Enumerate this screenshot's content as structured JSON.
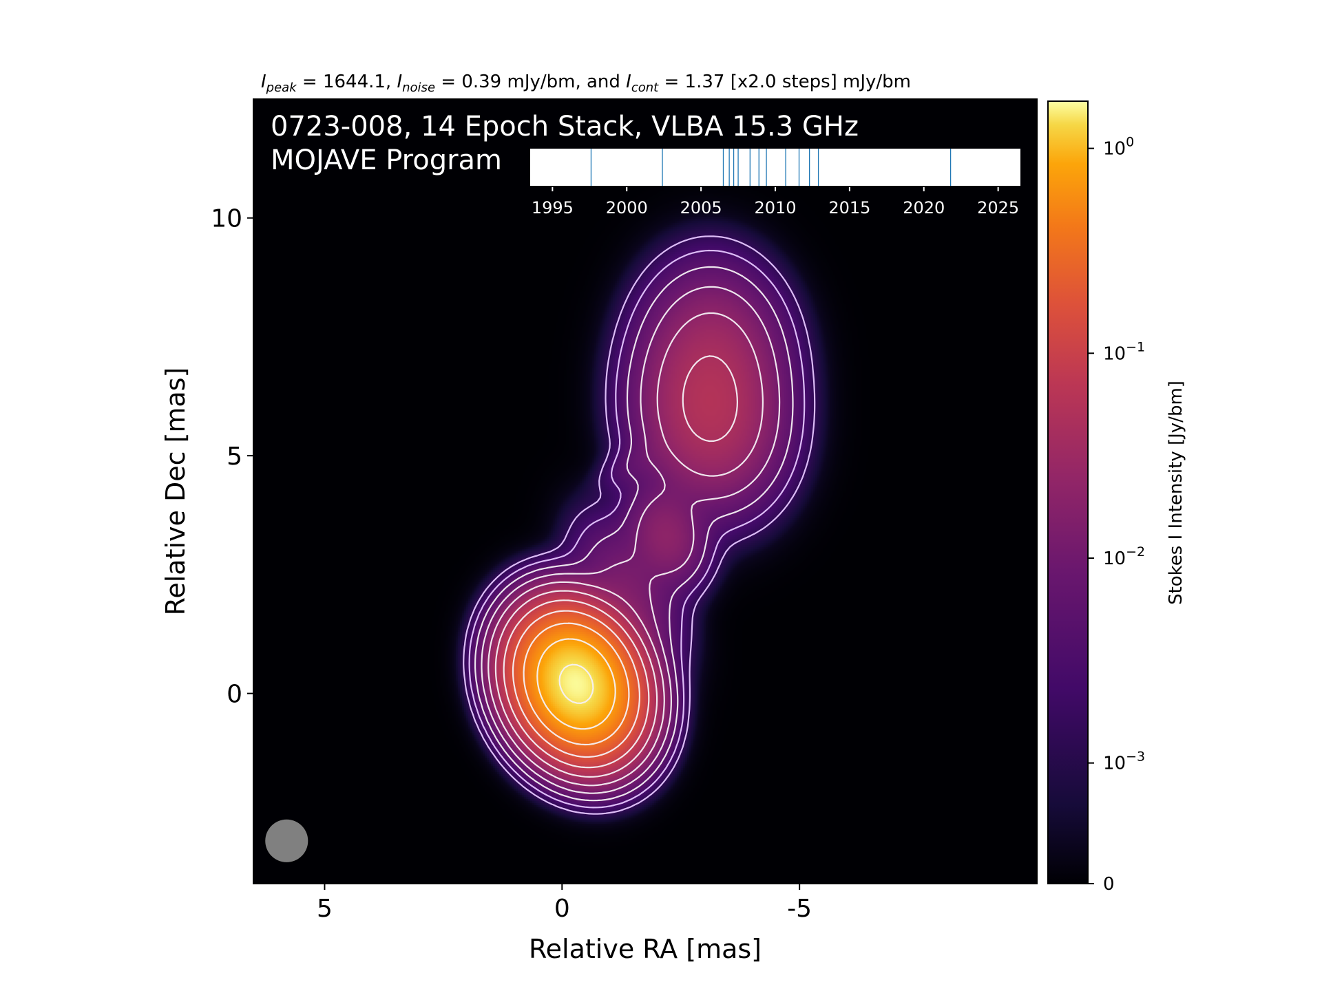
{
  "chart_data": {
    "type": "heatmap",
    "header": {
      "peak_sym": "I",
      "peak_sub": "peak",
      "peak_val": " = 1644.1, ",
      "noise_sym": "I",
      "noise_sub": "noise",
      "noise_val": " = 0.39 mJy/bm, and ",
      "cont_sym": "I",
      "cont_sub": "cont",
      "cont_val": " = 1.37 [x2.0 steps] mJy/bm"
    },
    "title_line1": "0723-008, 14 Epoch Stack, VLBA 15.3 GHz",
    "title_line2": "MOJAVE Program",
    "xlabel": "Relative RA [mas]",
    "ylabel": "Relative Dec [mas]",
    "xlim": [
      6.5,
      -10
    ],
    "ylim": [
      -4,
      12.5
    ],
    "x_ticks": [
      {
        "value": 5,
        "label": "5"
      },
      {
        "value": 0,
        "label": "0"
      },
      {
        "value": -5,
        "label": "-5"
      }
    ],
    "y_ticks": [
      {
        "value": 0,
        "label": "0"
      },
      {
        "value": 5,
        "label": "5"
      },
      {
        "value": 10,
        "label": "10"
      }
    ],
    "colormap": "inferno",
    "colorbar": {
      "label": "Stokes I Intensity [Jy/bm]",
      "scale": "log",
      "ticks": [
        {
          "value": 0,
          "label": "0"
        },
        {
          "value": 0.001,
          "base": "10",
          "exp": "−3"
        },
        {
          "value": 0.01,
          "base": "10",
          "exp": "−2"
        },
        {
          "value": 0.1,
          "base": "10",
          "exp": "−1"
        },
        {
          "value": 1,
          "base": "10",
          "exp": "0"
        }
      ]
    },
    "contours_mJy_per_beam": [
      1.37,
      2.74,
      5.48,
      10.96,
      21.92,
      43.84,
      87.68,
      175.36,
      350.72,
      701.44,
      1402.88
    ],
    "components": [
      {
        "ra": -0.3,
        "dec": 0.2,
        "peak_Jy_per_bm": 1.644,
        "sigma_maj": 0.75,
        "sigma_min": 0.6,
        "pa_deg": -25
      },
      {
        "ra": -3.1,
        "dec": 5.8,
        "peak_Jy_per_bm": 0.045,
        "sigma_maj": 1.0,
        "sigma_min": 0.8,
        "pa_deg": -10
      },
      {
        "ra": -2.2,
        "dec": 3.3,
        "peak_Jy_per_bm": 0.02,
        "sigma_maj": 0.6,
        "sigma_min": 0.45,
        "pa_deg": -20
      },
      {
        "ra": -1.4,
        "dec": 2.2,
        "peak_Jy_per_bm": 0.012,
        "sigma_maj": 0.9,
        "sigma_min": 0.5,
        "pa_deg": -30
      },
      {
        "ra": -3.2,
        "dec": 7.2,
        "peak_Jy_per_bm": 0.025,
        "sigma_maj": 1.0,
        "sigma_min": 0.8,
        "pa_deg": -5
      },
      {
        "ra": -1.5,
        "dec": 4.8,
        "peak_Jy_per_bm": 0.003,
        "sigma_maj": 0.5,
        "sigma_min": 0.25,
        "pa_deg": 60
      }
    ],
    "beam": {
      "ra": 5.8,
      "dec": -3.1,
      "major_mas": 0.9,
      "minor_mas": 0.9,
      "pa_deg": 0,
      "color": "#808080"
    },
    "epoch_inset": {
      "xlim": [
        1993.5,
        2026.5
      ],
      "ticks": [
        1995,
        2000,
        2005,
        2010,
        2015,
        2020,
        2025
      ],
      "epochs": [
        1997.6,
        2002.4,
        2006.5,
        2006.9,
        2007.2,
        2007.5,
        2008.3,
        2008.9,
        2009.4,
        2010.7,
        2011.6,
        2012.3,
        2012.9,
        2021.8
      ],
      "line_color": "#1f77b4"
    }
  }
}
